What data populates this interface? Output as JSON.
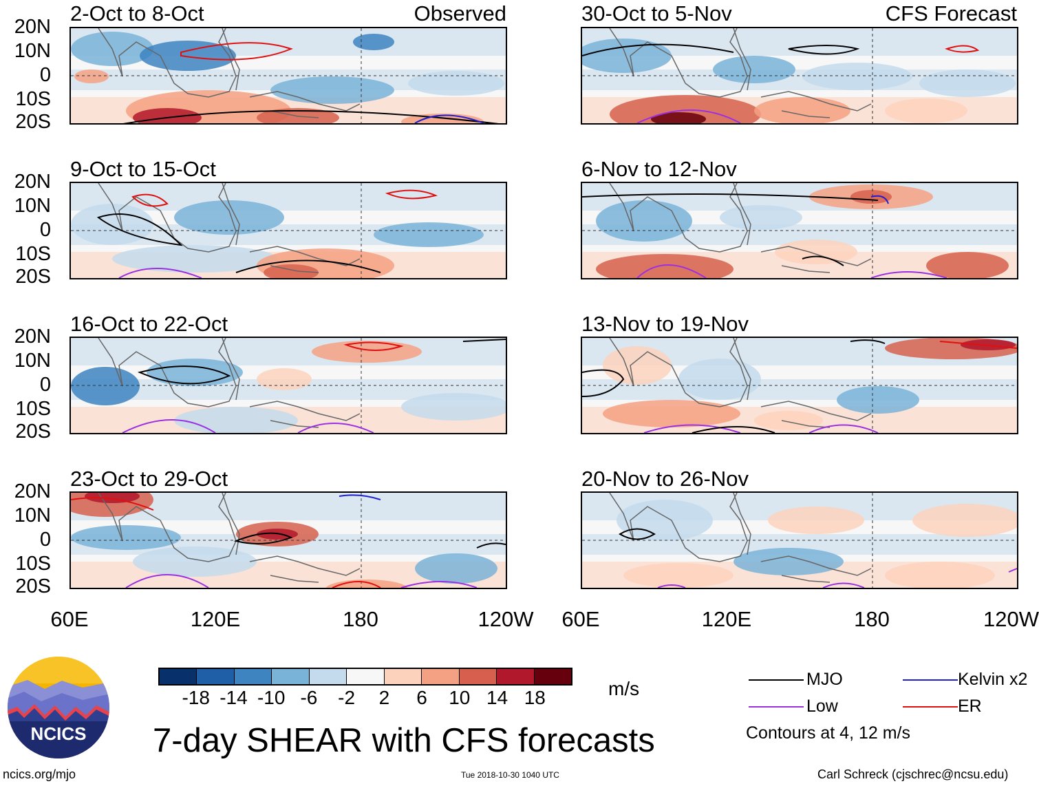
{
  "chart_data": {
    "type": "heatmap",
    "title": "7-day SHEAR with CFS forecasts",
    "units": "m/s",
    "x_axis": {
      "ticks": [
        "60E",
        "120E",
        "180",
        "120W"
      ],
      "range": [
        "60E",
        "120W"
      ]
    },
    "y_axis": {
      "ticks": [
        "20N",
        "10N",
        "0",
        "10S",
        "20S"
      ],
      "range": [
        "20S",
        "20N"
      ]
    },
    "panels": [
      {
        "title": "2-Oct to 8-Oct",
        "tag": "Observed"
      },
      {
        "title": "30-Oct to 5-Nov",
        "tag": "CFS Forecast"
      },
      {
        "title": "9-Oct to 15-Oct",
        "tag": ""
      },
      {
        "title": "6-Nov to 12-Nov",
        "tag": ""
      },
      {
        "title": "16-Oct to 22-Oct",
        "tag": ""
      },
      {
        "title": "13-Nov to 19-Nov",
        "tag": ""
      },
      {
        "title": "23-Oct to 29-Oct",
        "tag": ""
      },
      {
        "title": "20-Nov to 26-Nov",
        "tag": ""
      }
    ],
    "colorbar": {
      "ticks": [
        "-18",
        "-14",
        "-10",
        "-6",
        "-2",
        "2",
        "6",
        "10",
        "14",
        "18"
      ],
      "colors": [
        "#08306b",
        "#1f5fa8",
        "#3d84c1",
        "#7ab3d8",
        "#c3dbec",
        "#f7f7f7",
        "#fdd2bd",
        "#f4a183",
        "#d6604d",
        "#b2182b",
        "#67000d"
      ]
    },
    "legend": [
      {
        "label": "MJO",
        "color": "#000000"
      },
      {
        "label": "Kelvin x2",
        "color": "#1f1fd0"
      },
      {
        "label": "Low",
        "color": "#9b30e0"
      },
      {
        "label": "ER",
        "color": "#e01010"
      }
    ],
    "contour_note": "Contours at 4, 12 m/s"
  },
  "footer": {
    "logo_text": "NCICS",
    "url": "ncics.org/mjo",
    "timestamp": "Tue 2018-10-30 1040 UTC",
    "author": "Carl Schreck (cjschrec@ncsu.edu)"
  }
}
